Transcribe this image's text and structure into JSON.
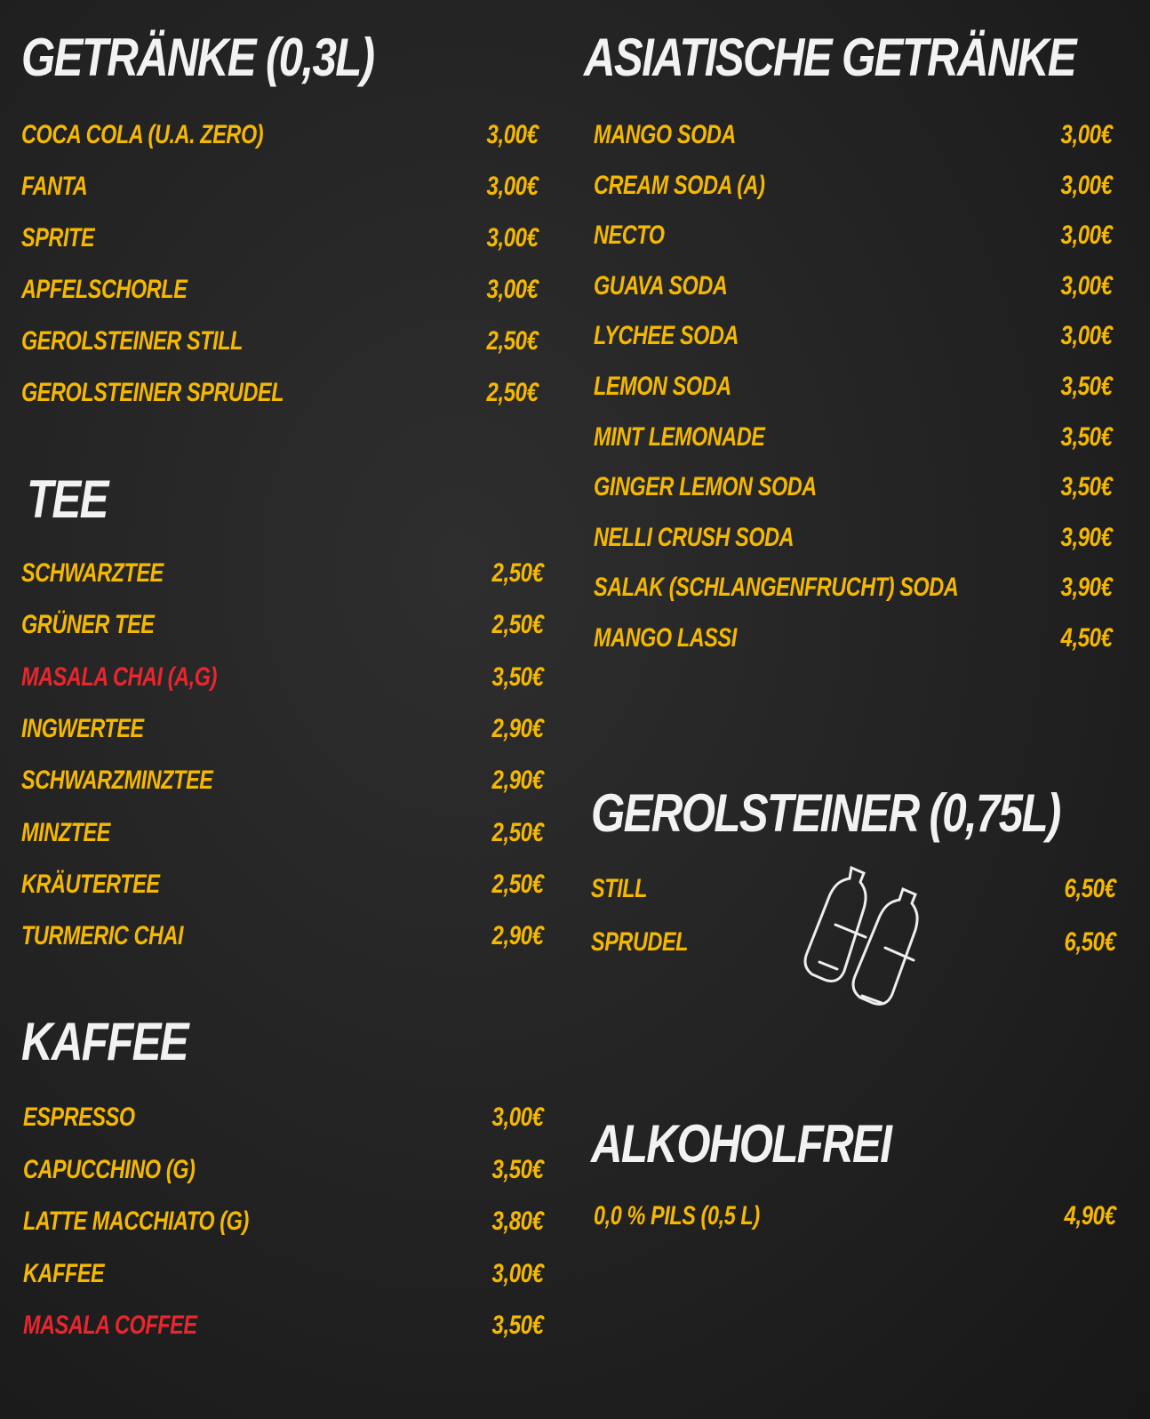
{
  "sections": [
    {
      "title": "GETRÄNKE (0,3L)",
      "items": [
        {
          "name": "COCA COLA (U.A. ZERO)",
          "price": "3,00€"
        },
        {
          "name": "FANTA",
          "price": "3,00€"
        },
        {
          "name": "SPRITE",
          "price": "3,00€"
        },
        {
          "name": "APFELSCHORLE",
          "price": "3,00€"
        },
        {
          "name": "GEROLSTEINER STILL",
          "price": "2,50€"
        },
        {
          "name": "GEROLSTEINER SPRUDEL",
          "price": "2,50€"
        }
      ]
    },
    {
      "title": "TEE",
      "items": [
        {
          "name": "SCHWARZTEE",
          "price": "2,50€"
        },
        {
          "name": "GRÜNER TEE",
          "price": "2,50€"
        },
        {
          "name": "MASALA CHAI (A,G)",
          "price": "3,50€",
          "color": "#e8262e"
        },
        {
          "name": "INGWERTEE",
          "price": "2,90€"
        },
        {
          "name": "SCHWARZMINZTEE",
          "price": "2,90€"
        },
        {
          "name": "MINZTEE",
          "price": "2,50€"
        },
        {
          "name": "KRÄUTERTEE",
          "price": "2,50€"
        },
        {
          "name": "TURMERIC CHAI",
          "price": "2,90€"
        }
      ]
    },
    {
      "title": "KAFFEE",
      "items": [
        {
          "name": "ESPRESSO",
          "price": "3,00€"
        },
        {
          "name": "CAPUCCHINO (G)",
          "price": "3,50€"
        },
        {
          "name": "LATTE MACCHIATO (G)",
          "price": "3,80€"
        },
        {
          "name": "KAFFEE",
          "price": "3,00€"
        },
        {
          "name": "MASALA COFFEE",
          "price": "3,50€",
          "color": "#e8262e"
        }
      ]
    },
    {
      "title": "ASIATISCHE GETRÄNKE",
      "items": [
        {
          "name": "MANGO SODA",
          "price": "3,00€"
        },
        {
          "name": "CREAM SODA (A)",
          "price": "3,00€"
        },
        {
          "name": "NECTO",
          "price": "3,00€"
        },
        {
          "name": "GUAVA SODA",
          "price": "3,00€"
        },
        {
          "name": "LYCHEE SODA",
          "price": "3,00€"
        },
        {
          "name": "LEMON SODA",
          "price": "3,50€"
        },
        {
          "name": "MINT LEMONADE",
          "price": "3,50€"
        },
        {
          "name": "GINGER LEMON SODA",
          "price": "3,50€"
        },
        {
          "name": "NELLI CRUSH SODA",
          "price": "3,90€"
        },
        {
          "name": "SALAK (SCHLANGENFRUCHT) SODA",
          "price": "3,90€"
        },
        {
          "name": "MANGO LASSI",
          "price": "4,50€"
        }
      ]
    },
    {
      "title": "GEROLSTEINER (0,75L)",
      "items": [
        {
          "name": "STILL",
          "price": "6,50€"
        },
        {
          "name": "SPRUDEL",
          "price": "6,50€"
        }
      ]
    },
    {
      "title": "ALKOHOLFREI",
      "items": [
        {
          "name": "0,0 % PILS (0,5 L)",
          "price": "4,90€"
        }
      ]
    }
  ]
}
